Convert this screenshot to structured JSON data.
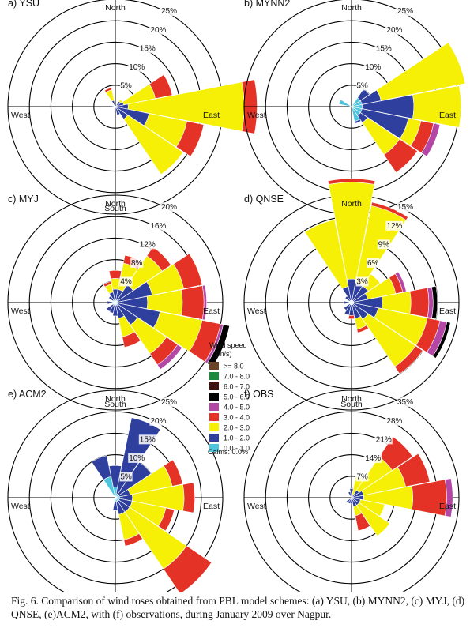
{
  "colors": {
    "0.0 - 1.0": "#4ec5de",
    "1.0 - 2.0": "#2f3f9e",
    "2.0 - 3.0": "#f5f006",
    "3.0 - 4.0": "#e53227",
    "4.0 - 5.0": "#b447a5",
    "5.0 - 6.0": "#000000",
    "6.0 - 7.0": "#3e1010",
    "7.0 - 8.0": "#1c8a3c",
    ">= 8.0": "#6b4326"
  },
  "legend": {
    "title": "Wind speed",
    "units": "(m/s)",
    "bins": [
      ">= 8.0",
      "7.0 - 8.0",
      "6.0 - 7.0",
      "5.0 - 6.0",
      "4.0 - 5.0",
      "3.0 - 4.0",
      "2.0 - 3.0",
      "1.0 - 2.0",
      "0.0 - 1.0"
    ],
    "calms": "Calms: 0.0%"
  },
  "caption": "Fig. 6. Comparison of wind roses obtained from PBL model schemes: (a) YSU, (b) MYNN2, (c) MYJ, (d) QNSE, (e)ACM2, with (f) observations, during January 2009 over Nagpur.",
  "compass": {
    "north": "North",
    "south": "South",
    "east": "East",
    "west": "West"
  },
  "chart_data": [
    {
      "type": "windrose",
      "title": "a) YSU",
      "rings": [
        5,
        10,
        15,
        20,
        25
      ],
      "ring_labels": [
        "5%",
        "10%",
        "15%",
        "20%",
        "25%"
      ],
      "bins": [
        "0.0 - 1.0",
        "1.0 - 2.0",
        "2.0 - 3.0",
        "3.0 - 4.0",
        "4.0 - 5.0",
        "5.0 - 6.0"
      ],
      "directions": [
        {
          "deg": 45,
          "speeds": [
            0,
            1.5,
            0.5,
            0,
            0,
            0
          ]
        },
        {
          "deg": 67.5,
          "speeds": [
            0,
            2,
            7.5,
            4,
            0,
            0
          ]
        },
        {
          "deg": 90,
          "speeds": [
            0,
            3,
            27,
            3,
            0,
            0
          ]
        },
        {
          "deg": 112.5,
          "speeds": [
            0,
            8,
            9,
            4,
            0,
            0
          ]
        },
        {
          "deg": 135,
          "speeds": [
            0,
            3.5,
            15.5,
            0,
            0,
            0
          ]
        },
        {
          "deg": 157.5,
          "speeds": [
            0,
            2,
            0,
            0,
            0,
            0
          ]
        },
        {
          "deg": 270,
          "speeds": [
            0,
            1,
            0,
            0,
            0,
            0
          ]
        },
        {
          "deg": 337.5,
          "speeds": [
            0,
            1.5,
            2.5,
            0.5,
            0,
            0
          ]
        }
      ]
    },
    {
      "type": "windrose",
      "title": "b) MYNN2",
      "rings": [
        5,
        10,
        15,
        20,
        25
      ],
      "ring_labels": [
        "5%",
        "10%",
        "15%",
        "20%",
        "25%"
      ],
      "bins": [
        "0.0 - 1.0",
        "1.0 - 2.0",
        "2.0 - 3.0",
        "3.0 - 4.0",
        "4.0 - 5.0",
        "5.0 - 6.0"
      ],
      "directions": [
        {
          "deg": 45,
          "speeds": [
            2.5,
            2.5,
            0,
            0,
            0,
            0
          ]
        },
        {
          "deg": 67.5,
          "speeds": [
            2.5,
            4.5,
            20,
            0,
            0,
            0
          ]
        },
        {
          "deg": 90,
          "speeds": [
            2.5,
            12,
            11,
            0,
            0,
            0
          ]
        },
        {
          "deg": 112.5,
          "speeds": [
            2.5,
            11,
            3,
            3,
            1.5,
            0
          ]
        },
        {
          "deg": 135,
          "speeds": [
            2.5,
            2,
            9,
            5,
            0,
            0
          ]
        },
        {
          "deg": 157.5,
          "speeds": [
            3.5,
            0.5,
            0,
            0,
            0,
            0
          ]
        },
        {
          "deg": 292.5,
          "speeds": [
            3,
            0,
            0,
            0,
            0,
            0
          ]
        }
      ]
    },
    {
      "type": "windrose",
      "title": "c) MYJ",
      "rings": [
        4,
        8,
        12,
        16,
        20
      ],
      "ring_labels": [
        "4%",
        "8%",
        "12%",
        "16%",
        "20%"
      ],
      "bins": [
        "0.0 - 1.0",
        "1.0 - 2.0",
        "2.0 - 3.0",
        "3.0 - 4.0",
        "4.0 - 5.0",
        "5.0 - 6.0"
      ],
      "directions": [
        {
          "deg": 0,
          "speeds": [
            0.5,
            2,
            2,
            1.5,
            0,
            0
          ]
        },
        {
          "deg": 22.5,
          "speeds": [
            0.5,
            2,
            5,
            1.5,
            0,
            0
          ]
        },
        {
          "deg": 45,
          "speeds": [
            0.5,
            3.5,
            6.5,
            2,
            0,
            0
          ]
        },
        {
          "deg": 67.5,
          "speeds": [
            0.5,
            6.5,
            6,
            3.5,
            0,
            0
          ]
        },
        {
          "deg": 90,
          "speeds": [
            0.5,
            5.5,
            6.5,
            4,
            0.5,
            0
          ]
        },
        {
          "deg": 112.5,
          "speeds": [
            0.5,
            8,
            8,
            3.5,
            0.5,
            1.2
          ]
        },
        {
          "deg": 135,
          "speeds": [
            0.5,
            4.5,
            6.5,
            2.5,
            1,
            0
          ]
        },
        {
          "deg": 157.5,
          "speeds": [
            0.5,
            2.5,
            3.5,
            2,
            0,
            0
          ]
        },
        {
          "deg": 180,
          "speeds": [
            0.5,
            2,
            0,
            0,
            0,
            0
          ]
        },
        {
          "deg": 202.5,
          "speeds": [
            0.5,
            1.5,
            0,
            0,
            0,
            0
          ]
        },
        {
          "deg": 225,
          "speeds": [
            0.5,
            1.5,
            0,
            0,
            0,
            0
          ]
        },
        {
          "deg": 270,
          "speeds": [
            0.5,
            1,
            0,
            0,
            0,
            0
          ]
        },
        {
          "deg": 315,
          "speeds": [
            0.5,
            1,
            0,
            0,
            0,
            0
          ]
        },
        {
          "deg": 337.5,
          "speeds": [
            0.5,
            1.5,
            1.5,
            0.5,
            0,
            0
          ]
        }
      ]
    },
    {
      "type": "windrose",
      "title": "d) QNSE",
      "rings": [
        3,
        6,
        9,
        12,
        15
      ],
      "ring_labels": [
        "3%",
        "6%",
        "9%",
        "12%",
        "15%"
      ],
      "bins": [
        "0.0 - 1.0",
        "1.0 - 2.0",
        "2.0 - 3.0",
        "3.0 - 4.0",
        "4.0 - 5.0",
        "5.0 - 6.0"
      ],
      "directions": [
        {
          "deg": 0,
          "speeds": [
            0.3,
            3,
            13.5,
            0.5,
            0,
            0
          ]
        },
        {
          "deg": 22.5,
          "speeds": [
            0.3,
            2.5,
            11,
            0.5,
            0,
            0
          ]
        },
        {
          "deg": 45,
          "speeds": [
            0.3,
            2.5,
            2,
            0,
            0,
            0
          ]
        },
        {
          "deg": 67.5,
          "speeds": [
            0.3,
            2,
            4,
            1,
            0.5,
            0
          ]
        },
        {
          "deg": 90,
          "speeds": [
            0.3,
            4,
            4,
            2.5,
            0.6,
            0.6
          ]
        },
        {
          "deg": 112.5,
          "speeds": [
            0.3,
            3.5,
            7,
            1.8,
            1,
            0.5
          ]
        },
        {
          "deg": 135,
          "speeds": [
            0.3,
            2.5,
            8,
            1.2,
            0,
            0
          ]
        },
        {
          "deg": 157.5,
          "speeds": [
            0.3,
            2,
            1.5,
            0.5,
            0,
            0
          ]
        },
        {
          "deg": 180,
          "speeds": [
            0.3,
            1.5,
            0,
            0.5,
            0,
            0
          ]
        },
        {
          "deg": 202.5,
          "speeds": [
            0.3,
            1.5,
            0,
            0,
            0,
            0
          ]
        },
        {
          "deg": 225,
          "speeds": [
            0.3,
            1,
            0,
            0,
            0,
            0
          ]
        },
        {
          "deg": 270,
          "speeds": [
            0.3,
            0.8,
            0,
            0,
            0,
            0
          ]
        },
        {
          "deg": 315,
          "speeds": [
            0.3,
            0.8,
            0,
            0,
            0,
            0
          ]
        },
        {
          "deg": 337.5,
          "speeds": [
            0.3,
            2,
            9.5,
            0,
            0,
            0
          ]
        }
      ]
    },
    {
      "type": "windrose",
      "title": "e) ACM2",
      "rings": [
        5,
        10,
        15,
        20,
        25
      ],
      "ring_labels": [
        "5%",
        "10%",
        "15%",
        "20%",
        "25%"
      ],
      "bins": [
        "0.0 - 1.0",
        "1.0 - 2.0",
        "2.0 - 3.0",
        "3.0 - 4.0",
        "4.0 - 5.0",
        "5.0 - 6.0"
      ],
      "directions": [
        {
          "deg": 0,
          "speeds": [
            2.5,
            5,
            0,
            0,
            0,
            0
          ]
        },
        {
          "deg": 22.5,
          "speeds": [
            1,
            18,
            0,
            0,
            0,
            0
          ]
        },
        {
          "deg": 45,
          "speeds": [
            1,
            9,
            0,
            0,
            0,
            0
          ]
        },
        {
          "deg": 67.5,
          "speeds": [
            1,
            2.5,
            10,
            2.5,
            0,
            0
          ]
        },
        {
          "deg": 90,
          "speeds": [
            1,
            3,
            12,
            2.5,
            0,
            0
          ]
        },
        {
          "deg": 112.5,
          "speeds": [
            1,
            3,
            8,
            2,
            0,
            0
          ]
        },
        {
          "deg": 135,
          "speeds": [
            1,
            3,
            16,
            7,
            0,
            0
          ]
        },
        {
          "deg": 157.5,
          "speeds": [
            1,
            3,
            6,
            1.5,
            0,
            0
          ]
        },
        {
          "deg": 180,
          "speeds": [
            1,
            2,
            0,
            0,
            0,
            0
          ]
        },
        {
          "deg": 337.5,
          "speeds": [
            5,
            5,
            0,
            0,
            0,
            0
          ]
        }
      ]
    },
    {
      "type": "windrose",
      "title": "f) OBS",
      "rings": [
        7,
        14,
        21,
        28,
        35
      ],
      "ring_labels": [
        "7%",
        "14%",
        "21%",
        "28%",
        "35%"
      ],
      "bins": [
        "0.0 - 1.0",
        "1.0 - 2.0",
        "2.0 - 3.0",
        "3.0 - 4.0",
        "4.0 - 5.0",
        "5.0 - 6.0"
      ],
      "directions": [
        {
          "deg": 0,
          "speeds": [
            0,
            3,
            0,
            0,
            0,
            0
          ]
        },
        {
          "deg": 22.5,
          "speeds": [
            0,
            1,
            6,
            0,
            0,
            0
          ]
        },
        {
          "deg": 45,
          "speeds": [
            0,
            3,
            13,
            8,
            0,
            0
          ]
        },
        {
          "deg": 67.5,
          "speeds": [
            0,
            4,
            14,
            8,
            0,
            0
          ]
        },
        {
          "deg": 90,
          "speeds": [
            0,
            4,
            16,
            11,
            2,
            0
          ]
        },
        {
          "deg": 112.5,
          "speeds": [
            0,
            3,
            8,
            0,
            0,
            0
          ]
        },
        {
          "deg": 135,
          "speeds": [
            0,
            3,
            12,
            0,
            0,
            0
          ]
        },
        {
          "deg": 157.5,
          "speeds": [
            0,
            3,
            3,
            5,
            0,
            0
          ]
        },
        {
          "deg": 180,
          "speeds": [
            0,
            2,
            0,
            0,
            0,
            0
          ]
        },
        {
          "deg": 202.5,
          "speeds": [
            0,
            2,
            0,
            0,
            0,
            0
          ]
        },
        {
          "deg": 225,
          "speeds": [
            0,
            2,
            0,
            0,
            0,
            0
          ]
        },
        {
          "deg": 337.5,
          "speeds": [
            0,
            2,
            0,
            0,
            0,
            0
          ]
        }
      ]
    }
  ]
}
